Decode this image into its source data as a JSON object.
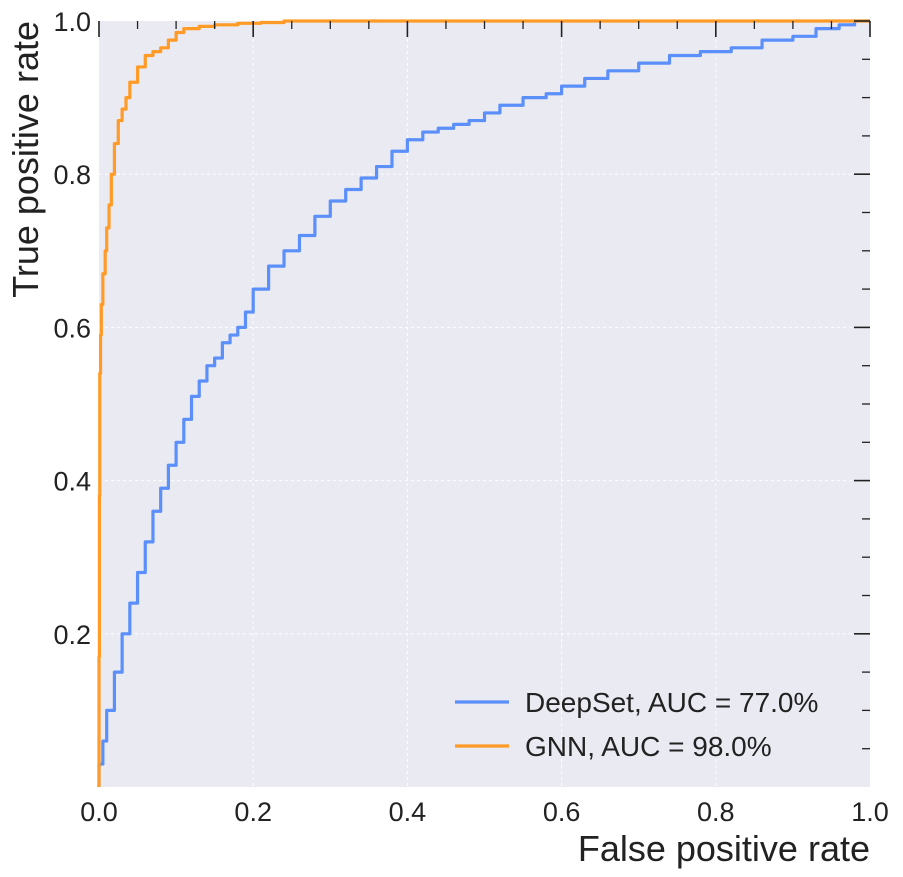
{
  "chart_data": {
    "type": "line",
    "title": "",
    "xlabel": "False positive rate",
    "ylabel": "True positive rate",
    "xlim": [
      0.0,
      1.0
    ],
    "ylim": [
      0.0,
      1.0
    ],
    "x_ticks": [
      "0.0",
      "0.2",
      "0.4",
      "0.6",
      "0.8",
      "1.0"
    ],
    "y_ticks": [
      "0.2",
      "0.4",
      "0.6",
      "0.8",
      "1.0"
    ],
    "grid": true,
    "legend_position": "bottom-right",
    "series": [
      {
        "name": "DeepSet, AUC = 77.0%",
        "color": "#5b8ff9",
        "x": [
          0.0,
          0.005,
          0.01,
          0.02,
          0.03,
          0.04,
          0.05,
          0.06,
          0.07,
          0.08,
          0.09,
          0.1,
          0.11,
          0.12,
          0.13,
          0.14,
          0.15,
          0.16,
          0.17,
          0.18,
          0.19,
          0.2,
          0.22,
          0.24,
          0.26,
          0.28,
          0.3,
          0.32,
          0.34,
          0.36,
          0.38,
          0.4,
          0.42,
          0.44,
          0.46,
          0.48,
          0.5,
          0.52,
          0.55,
          0.58,
          0.6,
          0.63,
          0.66,
          0.7,
          0.74,
          0.78,
          0.82,
          0.86,
          0.9,
          0.93,
          0.96,
          0.98,
          1.0
        ],
        "y": [
          0.0,
          0.03,
          0.06,
          0.1,
          0.15,
          0.2,
          0.24,
          0.28,
          0.32,
          0.36,
          0.39,
          0.42,
          0.45,
          0.48,
          0.51,
          0.53,
          0.55,
          0.56,
          0.58,
          0.59,
          0.6,
          0.62,
          0.65,
          0.68,
          0.7,
          0.72,
          0.745,
          0.765,
          0.78,
          0.795,
          0.81,
          0.83,
          0.845,
          0.855,
          0.86,
          0.865,
          0.87,
          0.88,
          0.89,
          0.9,
          0.905,
          0.915,
          0.925,
          0.935,
          0.945,
          0.955,
          0.96,
          0.965,
          0.975,
          0.98,
          0.99,
          0.995,
          1.0
        ]
      },
      {
        "name": "GNN, AUC = 98.0%",
        "color": "#ff9b26",
        "x": [
          0.0,
          0.0005,
          0.001,
          0.002,
          0.003,
          0.005,
          0.008,
          0.01,
          0.013,
          0.016,
          0.02,
          0.025,
          0.03,
          0.035,
          0.04,
          0.05,
          0.06,
          0.07,
          0.08,
          0.09,
          0.1,
          0.11,
          0.13,
          0.15,
          0.18,
          0.21,
          0.24,
          0.28,
          0.3,
          0.5,
          0.7,
          1.0
        ],
        "y": [
          0.0,
          0.17,
          0.38,
          0.54,
          0.59,
          0.63,
          0.67,
          0.7,
          0.73,
          0.76,
          0.8,
          0.84,
          0.87,
          0.885,
          0.9,
          0.92,
          0.94,
          0.955,
          0.96,
          0.965,
          0.975,
          0.985,
          0.99,
          0.993,
          0.995,
          0.997,
          0.998,
          1.0,
          1.0,
          1.0,
          1.0,
          1.0
        ]
      }
    ]
  }
}
